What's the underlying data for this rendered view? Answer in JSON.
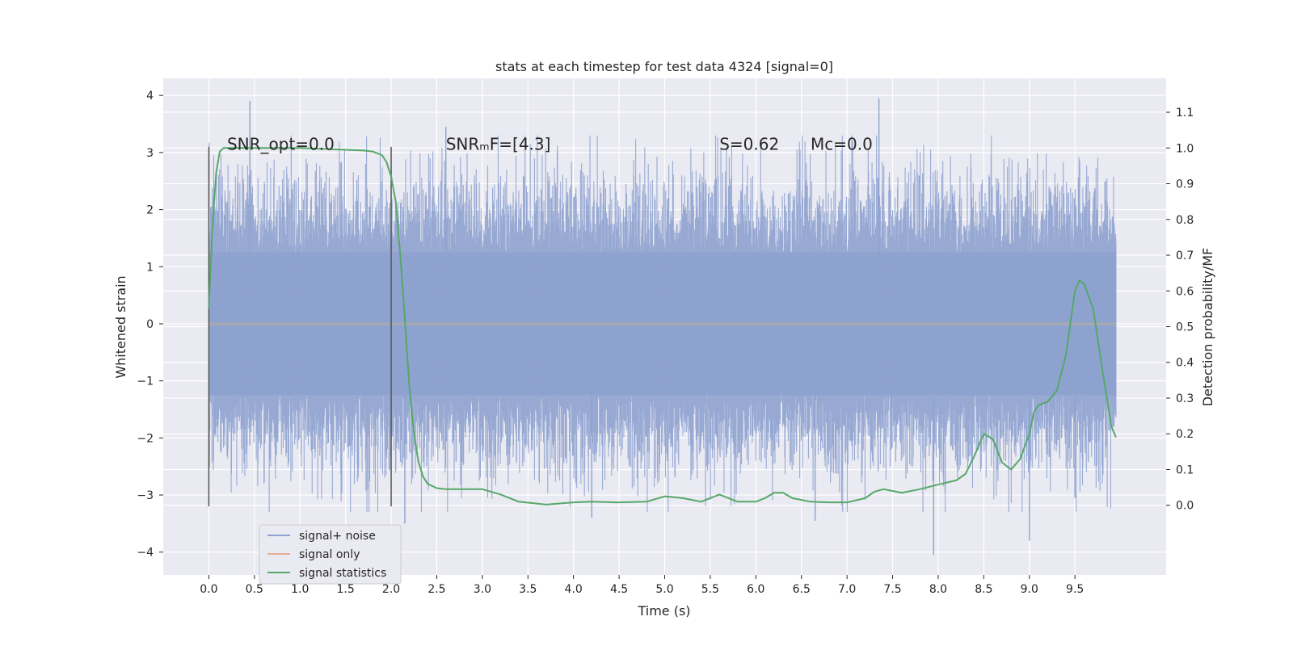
{
  "chart_data": {
    "type": "line",
    "title": "stats at each timestep for test data 4324 [signal=0]",
    "xlabel": "Time (s)",
    "ylabel": "Whitened strain",
    "y2label": "Detection probability/MF",
    "xlim": [
      -0.5,
      10.5
    ],
    "ylim": [
      -4.4,
      4.3
    ],
    "y2lim": [
      -0.195,
      1.195
    ],
    "x_ticks": [
      0.0,
      0.5,
      1.0,
      1.5,
      2.0,
      2.5,
      3.0,
      3.5,
      4.0,
      4.5,
      5.0,
      5.5,
      6.0,
      6.5,
      7.0,
      7.5,
      8.0,
      8.5,
      9.0,
      9.5
    ],
    "x_tick_labels": [
      "0.0",
      "0.5",
      "1.0",
      "1.5",
      "2.0",
      "2.5",
      "3.0",
      "3.5",
      "4.0",
      "4.5",
      "5.0",
      "5.5",
      "6.0",
      "6.5",
      "7.0",
      "7.5",
      "8.0",
      "8.5",
      "9.0",
      "9.5"
    ],
    "y_ticks": [
      -4,
      -3,
      -2,
      -1,
      0,
      1,
      2,
      3,
      4
    ],
    "y_tick_labels": [
      "−4",
      "−3",
      "−2",
      "−1",
      "0",
      "1",
      "2",
      "3",
      "4"
    ],
    "y2_ticks": [
      0.0,
      0.1,
      0.2,
      0.3,
      0.4,
      0.5,
      0.6,
      0.7,
      0.8,
      0.9,
      1.0,
      1.1
    ],
    "y2_tick_labels": [
      "0.0",
      "0.1",
      "0.2",
      "0.3",
      "0.4",
      "0.5",
      "0.6",
      "0.7",
      "0.8",
      "0.9",
      "1.0",
      "1.1"
    ],
    "grid": true,
    "legend_position": "lower-left",
    "annotations": [
      {
        "text": "SNR_opt=0.0",
        "x": 0.2,
        "y": 3.05
      },
      {
        "text": "SNRₘF=[4.3]",
        "x": 2.6,
        "y": 3.05
      },
      {
        "text": "S=0.62",
        "x": 5.6,
        "y": 3.05
      },
      {
        "text": "Mᴄ=0.0",
        "x": 6.6,
        "y": 3.05
      }
    ],
    "vlines": [
      {
        "x": 0.0,
        "y_from": -3.2,
        "y_to": 3.1
      },
      {
        "x": 2.0,
        "y_from": -3.2,
        "y_to": 3.1
      }
    ],
    "noise_extent": {
      "x_start": 0.0,
      "x_end": 9.95,
      "core_abs": 1.25,
      "typical_abs": 2.2,
      "max": 3.95,
      "min": -4.05
    },
    "noise_peaks": [
      {
        "x": 0.45,
        "y": 3.9
      },
      {
        "x": 2.6,
        "y": 3.45
      },
      {
        "x": 7.35,
        "y": 3.95
      },
      {
        "x": 7.95,
        "y": -4.05
      },
      {
        "x": 9.0,
        "y": -3.8
      },
      {
        "x": 2.15,
        "y": -3.5
      },
      {
        "x": 6.65,
        "y": -3.45
      },
      {
        "x": 4.2,
        "y": -3.4
      },
      {
        "x": 9.5,
        "y": -3.05
      }
    ],
    "series": [
      {
        "name": "signal+ noise",
        "color": "#8ea2cf",
        "axis": "left",
        "style": "dense-noise"
      },
      {
        "name": "signal only",
        "color": "#e5ae94",
        "axis": "left",
        "x": [
          0.0,
          9.95
        ],
        "y": [
          0.0,
          0.0
        ]
      },
      {
        "name": "signal statistics",
        "color": "#55a868",
        "axis": "right",
        "x": [
          0.0,
          0.04,
          0.08,
          0.12,
          0.16,
          0.2,
          0.25,
          0.3,
          0.5,
          1.0,
          1.5,
          1.7,
          1.8,
          1.9,
          1.95,
          2.0,
          2.05,
          2.1,
          2.15,
          2.2,
          2.25,
          2.3,
          2.35,
          2.4,
          2.5,
          2.6,
          2.8,
          3.0,
          3.2,
          3.4,
          3.7,
          4.0,
          4.2,
          4.5,
          4.8,
          5.0,
          5.2,
          5.4,
          5.6,
          5.8,
          6.0,
          6.1,
          6.2,
          6.3,
          6.4,
          6.6,
          6.8,
          7.0,
          7.2,
          7.3,
          7.4,
          7.6,
          7.8,
          8.0,
          8.2,
          8.3,
          8.4,
          8.5,
          8.6,
          8.7,
          8.8,
          8.9,
          9.0,
          9.05,
          9.1,
          9.2,
          9.3,
          9.4,
          9.5,
          9.55,
          9.6,
          9.7,
          9.8,
          9.9,
          9.95
        ],
        "y": [
          0.55,
          0.78,
          0.93,
          0.99,
          1.0,
          1.0,
          1.0,
          1.0,
          1.0,
          1.0,
          0.995,
          0.993,
          0.99,
          0.98,
          0.96,
          0.92,
          0.85,
          0.7,
          0.52,
          0.33,
          0.2,
          0.12,
          0.08,
          0.06,
          0.048,
          0.045,
          0.045,
          0.045,
          0.03,
          0.01,
          0.002,
          0.008,
          0.01,
          0.008,
          0.01,
          0.025,
          0.02,
          0.01,
          0.03,
          0.01,
          0.01,
          0.02,
          0.035,
          0.035,
          0.02,
          0.01,
          0.008,
          0.008,
          0.02,
          0.038,
          0.045,
          0.035,
          0.045,
          0.058,
          0.07,
          0.088,
          0.14,
          0.2,
          0.185,
          0.12,
          0.1,
          0.13,
          0.2,
          0.26,
          0.28,
          0.29,
          0.32,
          0.42,
          0.6,
          0.63,
          0.62,
          0.55,
          0.38,
          0.22,
          0.19
        ]
      }
    ]
  }
}
